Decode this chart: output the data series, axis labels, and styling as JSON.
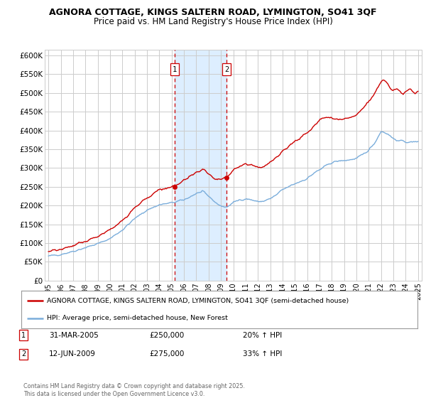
{
  "title_line1": "AGNORA COTTAGE, KINGS SALTERN ROAD, LYMINGTON, SO41 3QF",
  "title_line2": "Price paid vs. HM Land Registry's House Price Index (HPI)",
  "ylabel_ticks": [
    "£0",
    "£50K",
    "£100K",
    "£150K",
    "£200K",
    "£250K",
    "£300K",
    "£350K",
    "£400K",
    "£450K",
    "£500K",
    "£550K",
    "£600K"
  ],
  "ytick_values": [
    0,
    50000,
    100000,
    150000,
    200000,
    250000,
    300000,
    350000,
    400000,
    450000,
    500000,
    550000,
    600000
  ],
  "xlim_start": 1994.7,
  "xlim_end": 2025.3,
  "ylim_min": 0,
  "ylim_max": 615000,
  "transaction1_date": "31-MAR-2005",
  "transaction1_price": 250000,
  "transaction1_hpi": "20% ↑ HPI",
  "transaction1_x": 2005.25,
  "transaction2_date": "12-JUN-2009",
  "transaction2_price": 275000,
  "transaction2_hpi": "33% ↑ HPI",
  "transaction2_x": 2009.45,
  "line_color_red": "#cc0000",
  "line_color_blue": "#7aaddb",
  "shading_color": "#ddeeff",
  "grid_color": "#cccccc",
  "background_color": "#ffffff",
  "legend_label_red": "AGNORA COTTAGE, KINGS SALTERN ROAD, LYMINGTON, SO41 3QF (semi-detached house)",
  "legend_label_blue": "HPI: Average price, semi-detached house, New Forest",
  "footer_text": "Contains HM Land Registry data © Crown copyright and database right 2025.\nThis data is licensed under the Open Government Licence v3.0.",
  "xtick_years": [
    1995,
    1996,
    1997,
    1998,
    1999,
    2000,
    2001,
    2002,
    2003,
    2004,
    2005,
    2006,
    2007,
    2008,
    2009,
    2010,
    2011,
    2012,
    2013,
    2014,
    2015,
    2016,
    2017,
    2018,
    2019,
    2020,
    2021,
    2022,
    2023,
    2024,
    2025
  ]
}
